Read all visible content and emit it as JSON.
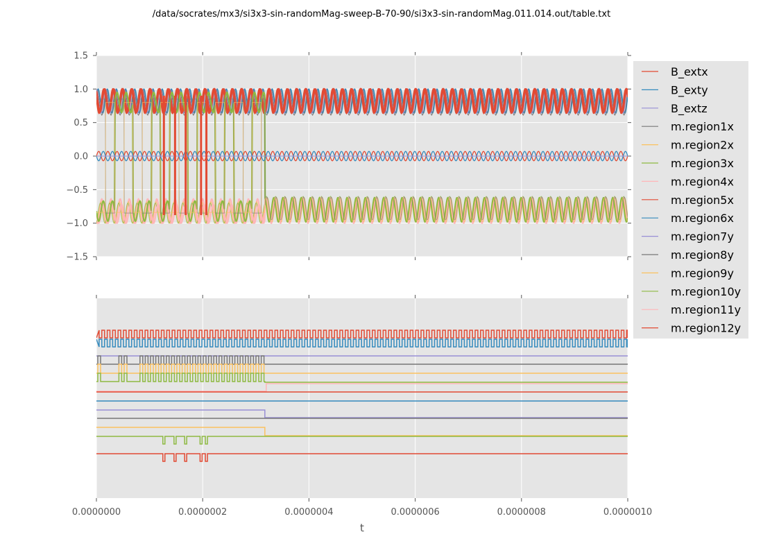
{
  "chart_data": {
    "type": "line",
    "title": "/data/socrates/mx3/si3x3-sin-randomMag-sweep-B-70-90/si3x3-sin-randomMag.011.014.out/table.txt",
    "xlabel": "t",
    "xlim": [
      0,
      1e-06
    ],
    "x_ticks": [
      "0.0000000",
      "0.0000002",
      "0.0000004",
      "0.0000006",
      "0.0000008",
      "0.0000010"
    ],
    "x_tick_values": [
      0,
      2e-07,
      4e-07,
      6e-07,
      8e-07,
      1e-06
    ],
    "switch_time": 3.17e-07,
    "panels": [
      {
        "name": "values",
        "ylim": [
          -1.5,
          1.5
        ],
        "y_ticks": [
          "1.5",
          "1.0",
          "0.5",
          "0.0",
          "−0.5",
          "−1.0",
          "−1.5"
        ],
        "y_tick_values": [
          1.5,
          1.0,
          0.5,
          0.0,
          -0.5,
          -1.0,
          -1.5
        ],
        "grid": true,
        "description": "B_ext components oscillate sinusoidally near 0 (amplitude ~0.07); regions oscillate between ~0.62 and 1.0 (upper band) or -0.62 and -1.0 (lower band); several regions flip between bands before t~3.17e-7"
      },
      {
        "name": "stacked-offset",
        "ylim": null,
        "y_ticks": [],
        "grid": true,
        "description": "Each series drawn offset vertically as a digital trace"
      }
    ],
    "legend": {
      "placement": "outside-right",
      "entries": [
        {
          "name": "B_extx",
          "color": "#E24A33"
        },
        {
          "name": "B_exty",
          "color": "#348ABD"
        },
        {
          "name": "B_extz",
          "color": "#988ED5"
        },
        {
          "name": "m.region1x",
          "color": "#777777"
        },
        {
          "name": "m.region2x",
          "color": "#FBC15E"
        },
        {
          "name": "m.region3x",
          "color": "#8EBA42"
        },
        {
          "name": "m.region4x",
          "color": "#FFB5B8"
        },
        {
          "name": "m.region5x",
          "color": "#E24A33"
        },
        {
          "name": "m.region6x",
          "color": "#348ABD"
        },
        {
          "name": "m.region7y",
          "color": "#988ED5"
        },
        {
          "name": "m.region8y",
          "color": "#777777"
        },
        {
          "name": "m.region9y",
          "color": "#FBC15E"
        },
        {
          "name": "m.region10y",
          "color": "#8EBA42"
        },
        {
          "name": "m.region11y",
          "color": "#FFB5B8"
        },
        {
          "name": "m.region12y",
          "color": "#E24A33"
        }
      ]
    },
    "bottom_traces": [
      {
        "series": "B_extx",
        "kind": "square",
        "color": "#E24A33"
      },
      {
        "series": "B_exty",
        "kind": "square-inverted",
        "color": "#348ABD"
      },
      {
        "series": "B_extz",
        "kind": "flat",
        "color": "#988ED5"
      },
      {
        "series": "m.region1x",
        "kind": "pulses-until-switch",
        "color": "#777777"
      },
      {
        "series": "m.region2x",
        "kind": "pulses-until-switch",
        "color": "#FBC15E"
      },
      {
        "series": "m.region3x",
        "kind": "pulses-until-switch-then-low",
        "color": "#8EBA42"
      },
      {
        "series": "m.region4x",
        "kind": "step-up-at-switch",
        "color": "#FFB5B8"
      },
      {
        "series": "m.region5x",
        "kind": "flat",
        "color": "#E24A33"
      },
      {
        "series": "m.region6x",
        "kind": "flat",
        "color": "#348ABD"
      },
      {
        "series": "m.region7y",
        "kind": "step-down-at-switch",
        "color": "#988ED5"
      },
      {
        "series": "m.region8y",
        "kind": "flat",
        "color": "#777777"
      },
      {
        "series": "m.region9y",
        "kind": "step-down-at-switch",
        "color": "#FBC15E"
      },
      {
        "series": "m.region10y",
        "kind": "dips",
        "color": "#8EBA42"
      },
      {
        "series": "m.region12y",
        "kind": "dips",
        "color": "#E24A33"
      }
    ],
    "dip_times": [
      1.27e-07,
      1.48e-07,
      1.68e-07,
      1.97e-07,
      2.07e-07
    ]
  },
  "style": {
    "axes_bg": "#E5E5E5",
    "grid_color": "#FFFFFF",
    "legend_bg": "#E5E5E5"
  }
}
